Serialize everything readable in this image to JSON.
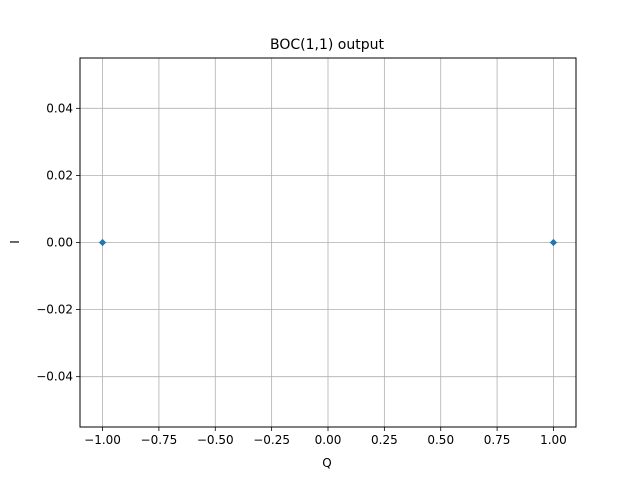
{
  "chart_data": {
    "type": "scatter",
    "title": "BOC(1,1) output",
    "xlabel": "Q",
    "ylabel": "I",
    "xlim": [
      -1.1,
      1.1
    ],
    "ylim": [
      -0.055,
      0.055
    ],
    "xticks": [
      -1.0,
      -0.75,
      -0.5,
      -0.25,
      0.0,
      0.25,
      0.5,
      0.75,
      1.0
    ],
    "xtick_labels": [
      "−1.00",
      "−0.75",
      "−0.50",
      "−0.25",
      "0.00",
      "0.25",
      "0.50",
      "0.75",
      "1.00"
    ],
    "yticks": [
      -0.04,
      -0.02,
      0.0,
      0.02,
      0.04
    ],
    "ytick_labels": [
      "−0.04",
      "−0.02",
      "0.00",
      "0.02",
      "0.04"
    ],
    "grid": true,
    "series": [
      {
        "x": [
          -1.0,
          1.0
        ],
        "y": [
          0.0,
          0.0
        ],
        "color": "#1f77b4",
        "marker": "diamond"
      }
    ]
  },
  "colors": {
    "grid": "#b0b0b0",
    "axis": "#000000",
    "marker": "#1f77b4"
  }
}
